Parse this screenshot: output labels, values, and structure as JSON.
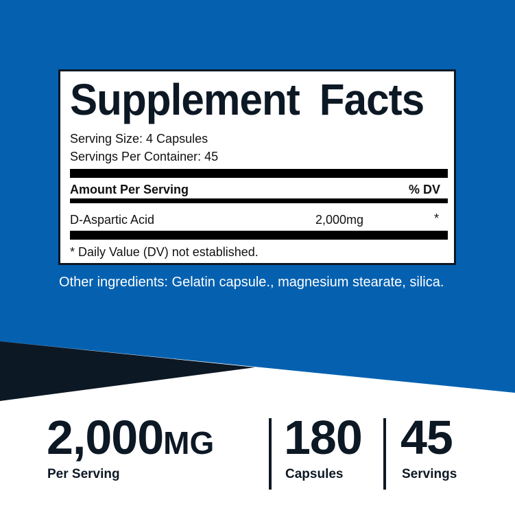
{
  "colors": {
    "blue": "#0561b0",
    "dark": "#0d1825",
    "white": "#ffffff"
  },
  "facts": {
    "title": "Supplement Facts",
    "serving_size": "Serving Size: 4 Capsules",
    "servings_per_container": "Servings Per Container: 45",
    "header_amount": "Amount Per Serving",
    "header_dv": "% DV",
    "rows": [
      {
        "name": "D-Aspartic Acid",
        "amount": "2,000mg",
        "dv": "*"
      }
    ],
    "footnote": "* Daily Value (DV) not established."
  },
  "other_ingredients": "Other ingredients: Gelatin capsule., magnesium stearate, silica.",
  "stats": [
    {
      "value": "2,000",
      "unit": "MG",
      "label": "Per Serving"
    },
    {
      "value": "180",
      "label": "Capsules"
    },
    {
      "value": "45",
      "label": "Servings"
    }
  ]
}
